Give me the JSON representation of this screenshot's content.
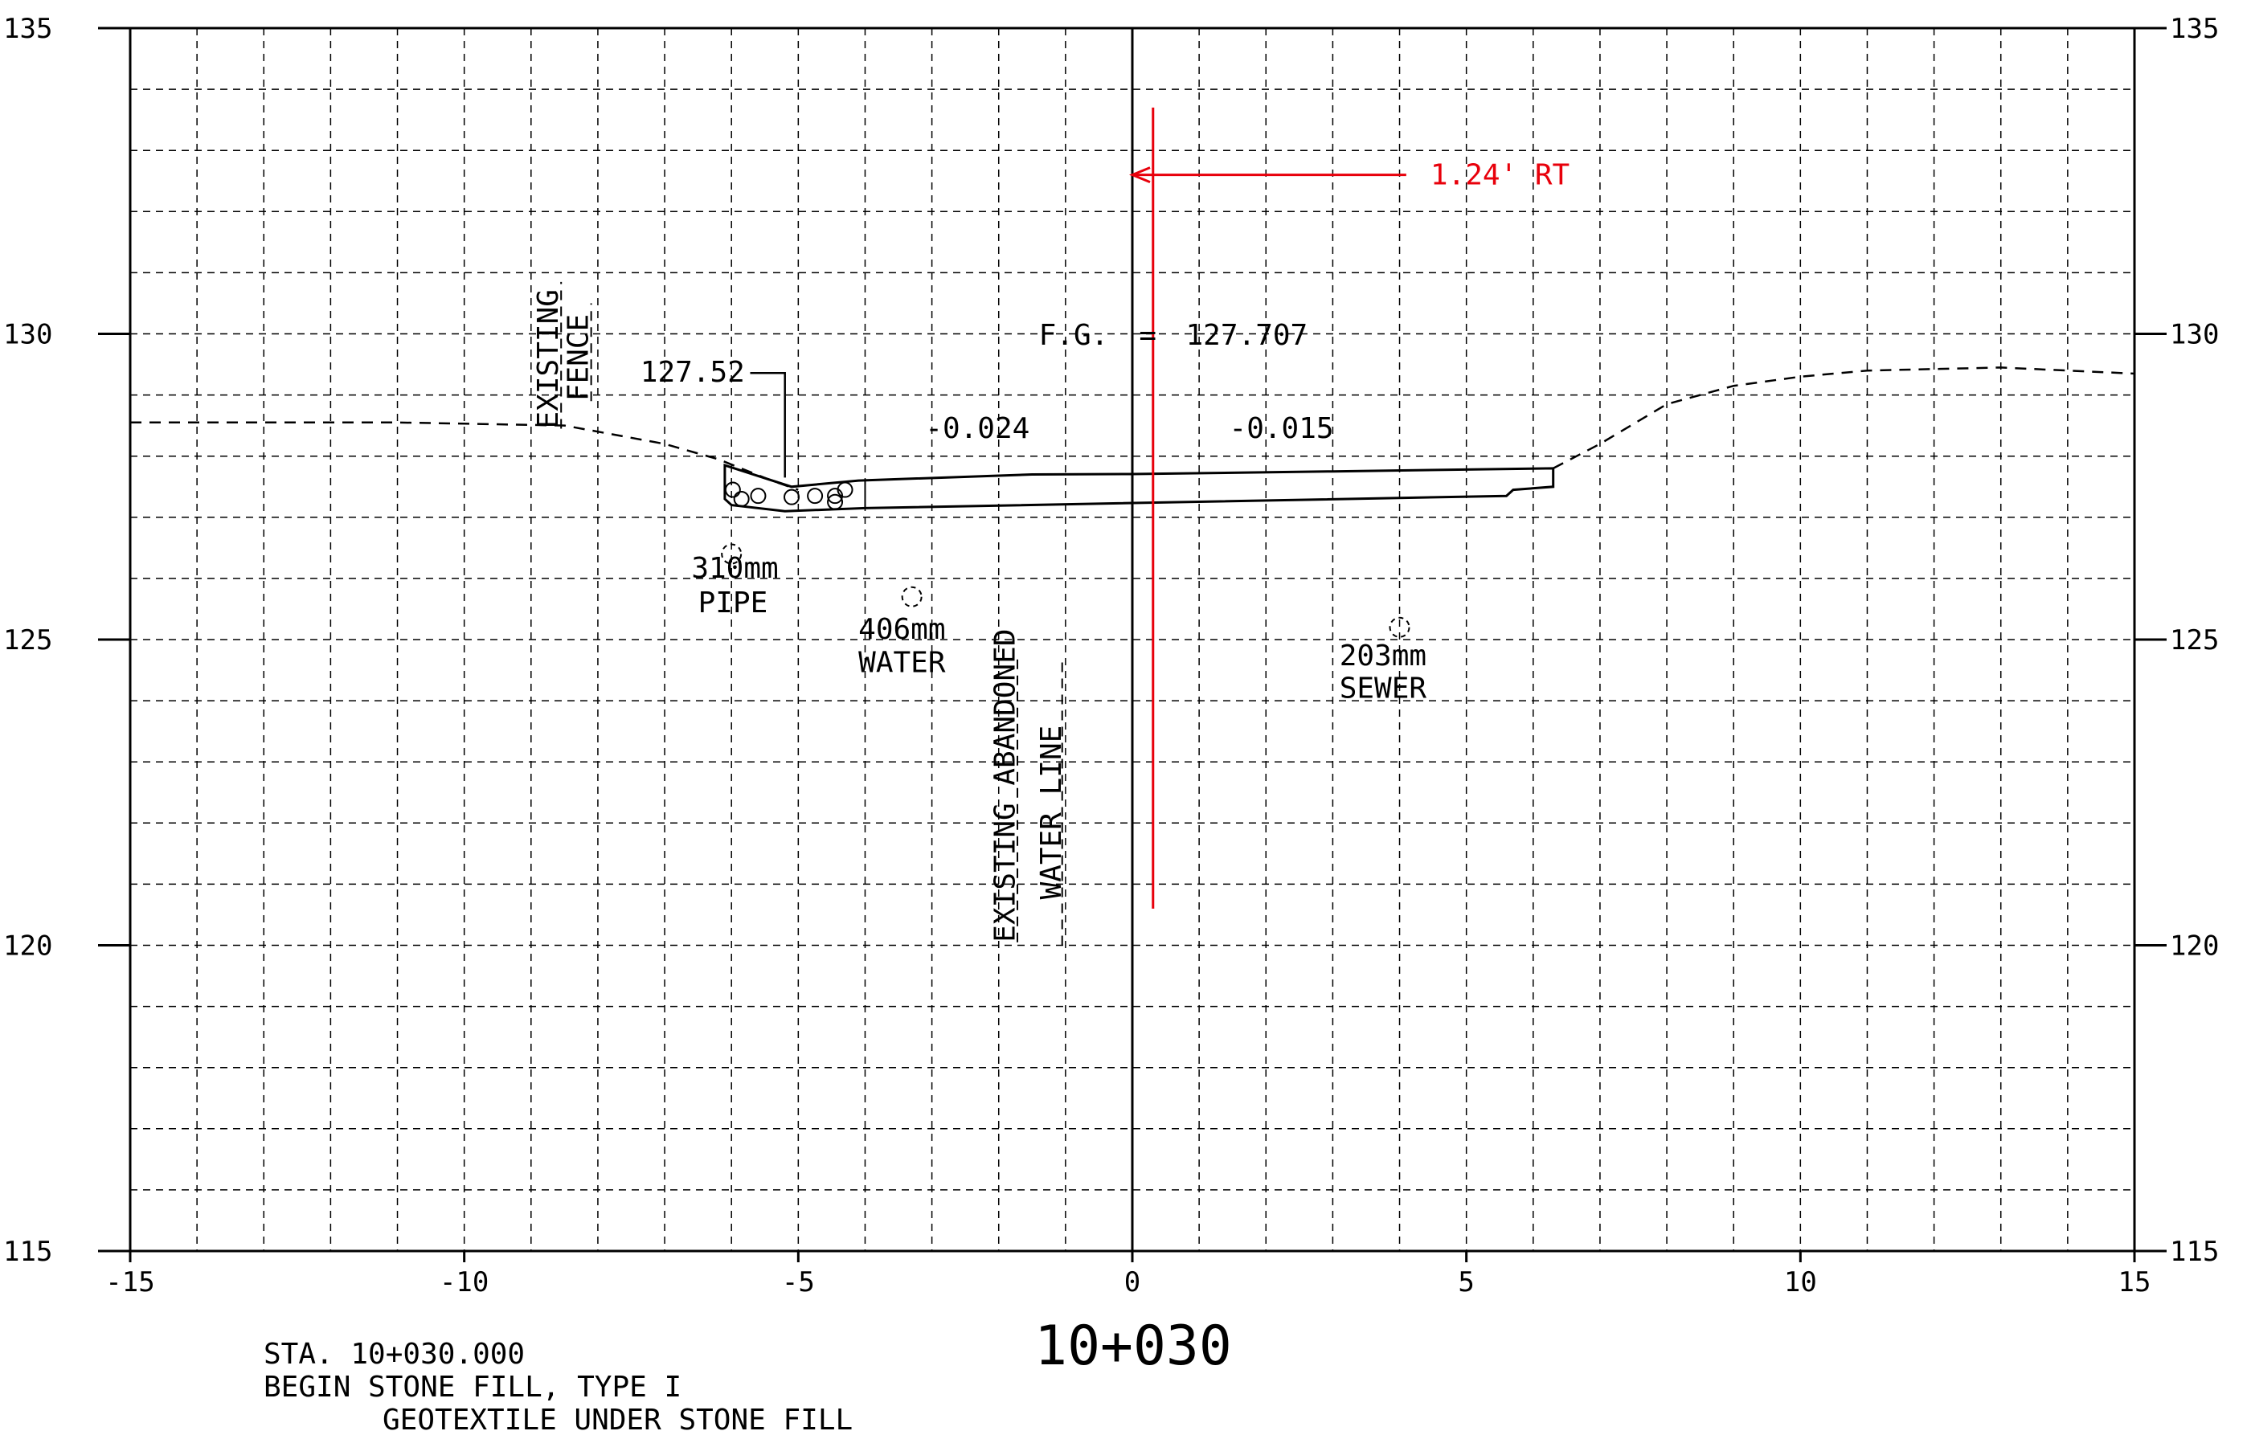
{
  "station_label": "10+030",
  "colors": {
    "ink": "#000000",
    "offset_red": "#e8000b"
  },
  "axes": {
    "x_range": [
      -15,
      15
    ],
    "y_range": [
      115,
      135
    ],
    "x_ticks": [
      {
        "v": -15,
        "label": "-15"
      },
      {
        "v": -10,
        "label": "-10"
      },
      {
        "v": -5,
        "label": "-5"
      },
      {
        "v": 0,
        "label": "0"
      },
      {
        "v": 5,
        "label": "5"
      },
      {
        "v": 10,
        "label": "10"
      },
      {
        "v": 15,
        "label": "15"
      }
    ],
    "y_ticks": [
      {
        "v": 115,
        "label": "115"
      },
      {
        "v": 120,
        "label": "120"
      },
      {
        "v": 125,
        "label": "125"
      },
      {
        "v": 130,
        "label": "130"
      },
      {
        "v": 135,
        "label": "135"
      }
    ],
    "grid_step_x": 1,
    "grid_step_y": 1,
    "grid": "dashed"
  },
  "existing_ground": [
    [
      -15,
      128.55
    ],
    [
      -11,
      128.55
    ],
    [
      -8.5,
      128.5
    ],
    [
      -7,
      128.2
    ],
    [
      -6.2,
      127.95
    ],
    [
      -5.4,
      127.6
    ],
    [
      -5,
      127.45
    ]
  ],
  "existing_ground_right": [
    [
      6.3,
      127.8
    ],
    [
      7,
      128.2
    ],
    [
      8,
      128.85
    ],
    [
      9,
      129.15
    ],
    [
      10,
      129.3
    ],
    [
      11,
      129.4
    ],
    [
      13,
      129.45
    ],
    [
      15,
      129.35
    ]
  ],
  "proposed_section": {
    "top": [
      [
        -6.1,
        127.85
      ],
      [
        -5.1,
        127.5
      ],
      [
        -4.1,
        127.6
      ],
      [
        -1.5,
        127.7
      ],
      [
        0,
        127.707
      ],
      [
        3,
        127.75
      ],
      [
        6.3,
        127.8
      ]
    ],
    "bottom": [
      [
        6.3,
        127.5
      ],
      [
        5.7,
        127.45
      ],
      [
        5.6,
        127.35
      ],
      [
        -4,
        127.15
      ],
      [
        -5.2,
        127.1
      ],
      [
        -6.0,
        127.2
      ],
      [
        -6.1,
        127.3
      ]
    ]
  },
  "labels": {
    "elev_ditch": "127.52",
    "fg_label": "F.G.",
    "fg_eq": "=",
    "fg_value": "127.707",
    "slope_left": "-0.024",
    "slope_right": "-0.015",
    "offset": "1.24' RT",
    "fence_line1": "EXISTING",
    "fence_line2": "FENCE",
    "abandoned_line1": "EXISTING ABANDONED",
    "abandoned_line2": "WATER LINE",
    "pipe_size": "310mm",
    "pipe_type": "PIPE",
    "water_size": "406mm",
    "water_type": "WATER",
    "sewer_size": "203mm",
    "sewer_type": "SEWER"
  },
  "utilities": [
    {
      "name": "pipe",
      "x": -6.0,
      "y": 126.4
    },
    {
      "name": "water",
      "x": -3.3,
      "y": 125.7
    },
    {
      "name": "sewer",
      "x": 4.0,
      "y": 125.2
    }
  ],
  "offset_line": {
    "x": 0.31,
    "y_top": 133.7,
    "y_bottom": 120.6,
    "arrow_y": 132.6,
    "arrow_tail_x": 4.1
  },
  "notes": {
    "line1": "STA. 10+030.000",
    "line2": "BEGIN STONE FILL, TYPE I",
    "line3": "GEOTEXTILE UNDER STONE FILL"
  }
}
